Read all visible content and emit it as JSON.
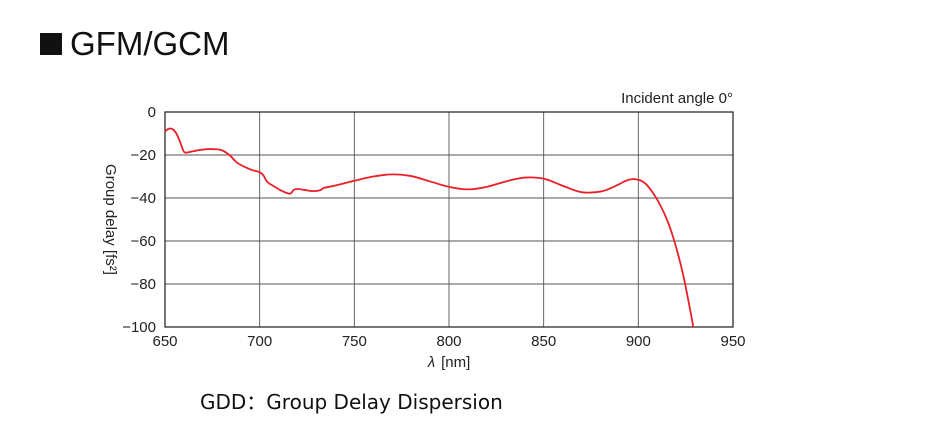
{
  "heading": {
    "title": "GFM/GCM"
  },
  "chart_data": {
    "type": "line",
    "title": "",
    "annotation": "Incident angle 0°",
    "xlabel_symbol": "λ",
    "xlabel_unit": "[nm]",
    "ylabel": "Group delay [fs²]",
    "xlim": [
      650,
      950
    ],
    "ylim": [
      -100,
      0
    ],
    "xticks": [
      650,
      700,
      750,
      800,
      850,
      900,
      950
    ],
    "yticks": [
      0,
      -20,
      -40,
      -60,
      -80,
      -100
    ],
    "ytick_labels": [
      "0",
      "−20",
      "−40",
      "−60",
      "−80",
      "−100"
    ],
    "grid": true,
    "series": [
      {
        "color": "#e8202a",
        "x": [
          650,
          652,
          654,
          656,
          658,
          660,
          662,
          664,
          668,
          672,
          676,
          680,
          684,
          688,
          692,
          696,
          700,
          702,
          704,
          708,
          712,
          716,
          718,
          720,
          724,
          728,
          732,
          734,
          740,
          750,
          760,
          770,
          780,
          790,
          800,
          810,
          820,
          830,
          840,
          850,
          860,
          870,
          880,
          886,
          890,
          895,
          900,
          904,
          908,
          912,
          916,
          920,
          924,
          928,
          929
        ],
        "values": [
          -9,
          -7.8,
          -8,
          -10,
          -14,
          -18.5,
          -18.8,
          -18.4,
          -17.7,
          -17.3,
          -17.3,
          -17.8,
          -20,
          -23.5,
          -25.5,
          -27,
          -28,
          -29.5,
          -32.5,
          -34.8,
          -36.8,
          -38,
          -36.2,
          -35.8,
          -36.3,
          -36.8,
          -36.4,
          -35.3,
          -34.2,
          -32,
          -30,
          -29,
          -29.8,
          -32.3,
          -34.8,
          -36,
          -34.8,
          -32.3,
          -30.5,
          -31,
          -34.3,
          -37.3,
          -37,
          -35.2,
          -33.5,
          -31.5,
          -31.5,
          -33.5,
          -38,
          -44,
          -52,
          -63,
          -77,
          -95,
          -100
        ]
      }
    ]
  },
  "caption": "GDD：Group Delay Dispersion"
}
